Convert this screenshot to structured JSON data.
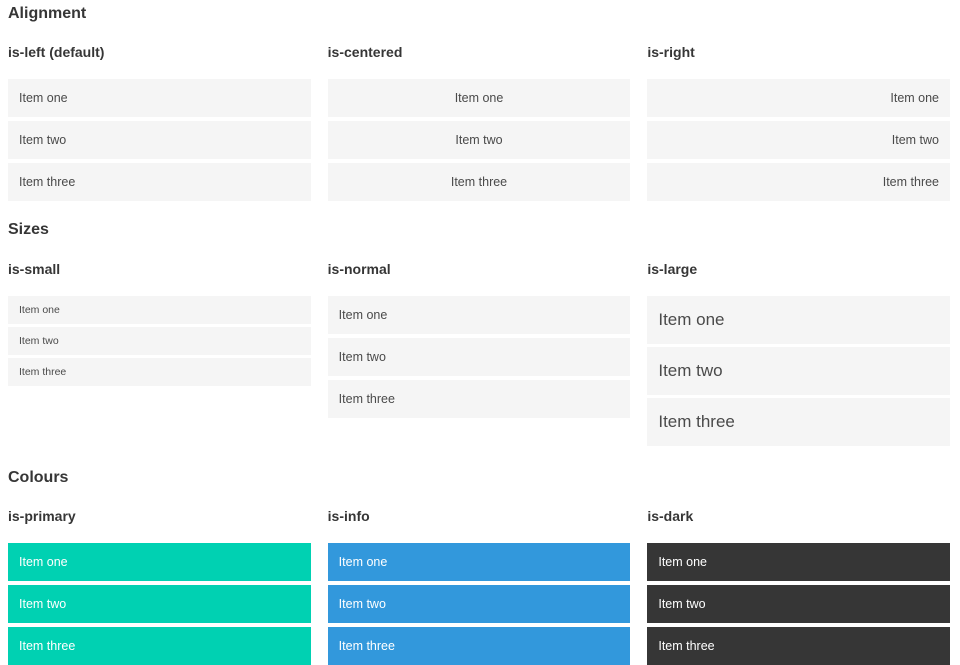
{
  "colors": {
    "primary": "#00d1b2",
    "info": "#3298dc",
    "dark": "#363636",
    "item_bg": "#f5f5f5",
    "item_text": "#4a4a4a",
    "heading_text": "#363636"
  },
  "sections": [
    {
      "title": "Alignment",
      "columns": [
        {
          "subtitle": "is-left (default)",
          "variant": "left",
          "items": [
            "Item one",
            "Item two",
            "Item three"
          ]
        },
        {
          "subtitle": "is-centered",
          "variant": "centered",
          "items": [
            "Item one",
            "Item two",
            "Item three"
          ]
        },
        {
          "subtitle": "is-right",
          "variant": "right",
          "items": [
            "Item one",
            "Item two",
            "Item three"
          ]
        }
      ]
    },
    {
      "title": "Sizes",
      "columns": [
        {
          "subtitle": "is-small",
          "variant": "small",
          "items": [
            "Item one",
            "Item two",
            "Item three"
          ]
        },
        {
          "subtitle": "is-normal",
          "variant": "normal",
          "items": [
            "Item one",
            "Item two",
            "Item three"
          ]
        },
        {
          "subtitle": "is-large",
          "variant": "large",
          "items": [
            "Item one",
            "Item two",
            "Item three"
          ]
        }
      ]
    },
    {
      "title": "Colours",
      "columns": [
        {
          "subtitle": "is-primary",
          "variant": "primary",
          "items": [
            "Item one",
            "Item two",
            "Item three"
          ]
        },
        {
          "subtitle": "is-info",
          "variant": "info",
          "items": [
            "Item one",
            "Item two",
            "Item three"
          ]
        },
        {
          "subtitle": "is-dark",
          "variant": "dark",
          "items": [
            "Item one",
            "Item two",
            "Item three"
          ]
        }
      ]
    }
  ]
}
